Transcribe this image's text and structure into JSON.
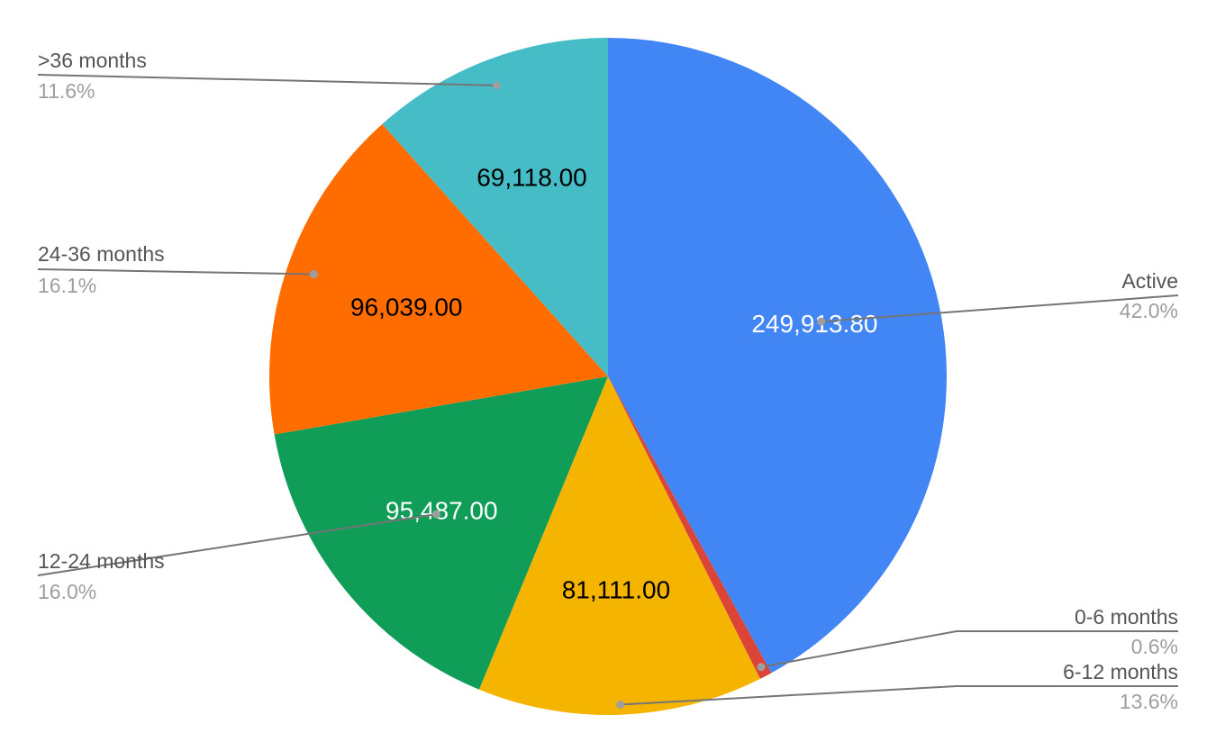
{
  "chart_data": {
    "type": "pie",
    "title": "",
    "legend": "callouts",
    "slices": [
      {
        "name": "Active",
        "value": 249913.8,
        "value_label": "249,913.80",
        "percent": "42.0%",
        "color": "#4285f4",
        "label_color": "#ffffff"
      },
      {
        "name": "0-6 months",
        "value": 3570.0,
        "value_label": "",
        "percent": "0.6%",
        "color": "#db4437",
        "label_color": "#ffffff"
      },
      {
        "name": "6-12 months",
        "value": 81111.0,
        "value_label": "81,111.00",
        "percent": "13.6%",
        "color": "#f4b400",
        "label_color": "#000000"
      },
      {
        "name": "12-24 months",
        "value": 95487.0,
        "value_label": "95,487.00",
        "percent": "16.0%",
        "color": "#0f9d58",
        "label_color": "#ffffff"
      },
      {
        "name": "24-36 months",
        "value": 96039.0,
        "value_label": "96,039.00",
        "percent": "16.1%",
        "color": "#ff6d00",
        "label_color": "#000000"
      },
      {
        "name": ">36 months",
        "value": 69118.0,
        "value_label": "69,118.00",
        "percent": "11.6%",
        "color": "#46bdc6",
        "label_color": "#000000"
      }
    ]
  }
}
